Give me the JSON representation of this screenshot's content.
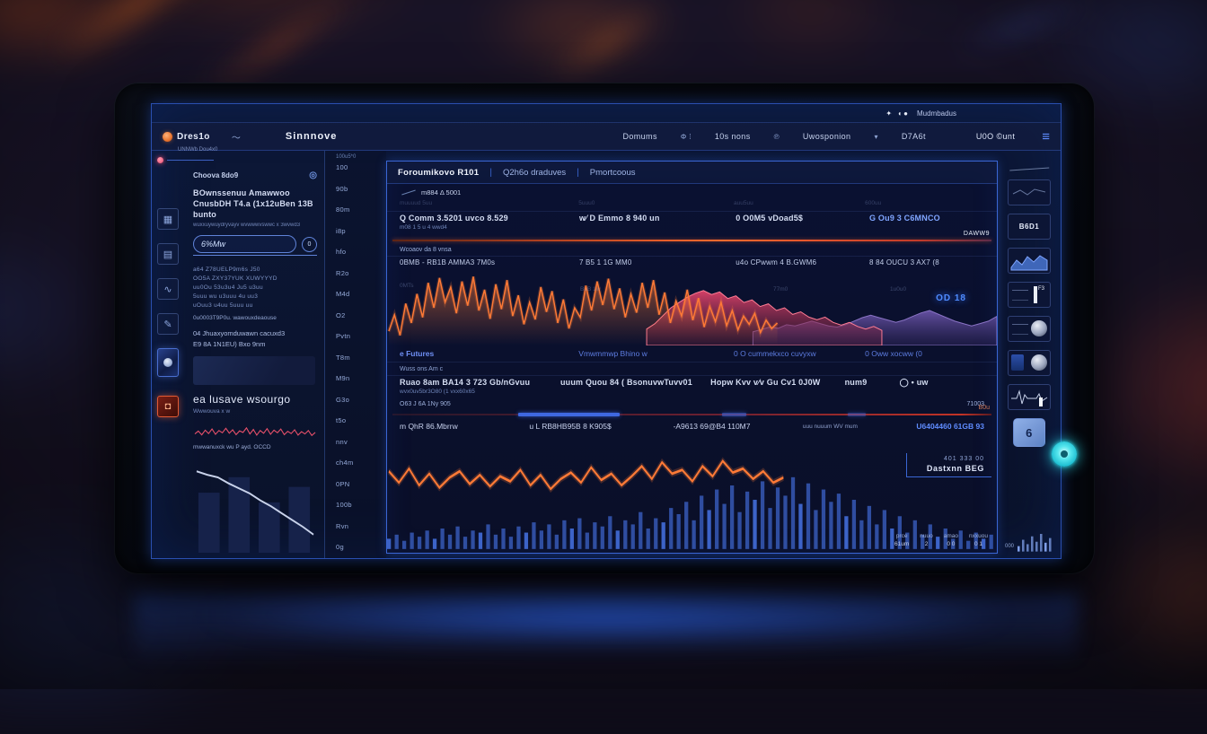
{
  "colors": {
    "accent_blue": "#3f6de0",
    "accent_orange": "#ff7a36",
    "pink": "#d84a72",
    "purple": "#64509c",
    "cyan": "#2bd9e6",
    "link_blue": "#5f8cff",
    "alert_red": "#e8506a"
  },
  "status_bar": {
    "marks": "✦ ◖●",
    "label": "Mudmbadus"
  },
  "nav": {
    "logo_text": "Dres1o",
    "logo_sub": "UNNWb Dou4x0",
    "wifi_glyph": "〜",
    "app_title": "Sinnnove",
    "items": [
      "Domums",
      "Φ ⁞",
      "10s nons",
      "℗",
      "Uwosponion",
      "▾",
      "D7A6t",
      "U0O ©unt"
    ],
    "menu_glyph": "≡"
  },
  "left_rail": {
    "icons": [
      {
        "name": "grid-icon",
        "glyph": "▦",
        "kind": "plain"
      },
      {
        "name": "document-icon",
        "glyph": "▤",
        "kind": "plain"
      },
      {
        "name": "waveform-icon",
        "glyph": "∿",
        "kind": "plain"
      },
      {
        "name": "pen-icon",
        "glyph": "✎",
        "kind": "plain"
      },
      {
        "name": "image-thumb-icon",
        "glyph": "",
        "kind": "thumb"
      },
      {
        "name": "alert-icon",
        "glyph": "◘",
        "kind": "alert"
      }
    ]
  },
  "left_panel": {
    "header": "Choova 8do9",
    "header_icon": "◎",
    "title_line1": "BOwnssenuu Amawwoo",
    "title_line2": "CnusbDH T4.a (1x12uBen 13B bunto",
    "subtitle": "wuxxuywuydryvayv wvwwwvswwc x 3wvwd3",
    "search_value": "6%Mw",
    "search_badge": "0",
    "body_lines": [
      "a64 Z78UELP9m6s J50",
      "OO5A ZXY37YUK XUWYYYD",
      "uu0Ou 53u3u4 Ju5 u3uu",
      "5uuu wu u3uuu 4u uu3",
      "uOuu3 u4uu 5uuu uu"
    ],
    "note_line": "0u0003T9P0u. wawouxdeaouse",
    "meta_line1": "04 Jhuaxyomduwawn cacuxd3",
    "meta_line2": "E9 8A 1N1EU) Bxo 9nm",
    "section_heading": "ea lusave wsourgo",
    "section_caption": "Wwwouva x w",
    "spark_caption": "mwwanuxck wu P ayd. OCCD"
  },
  "scale_top": "100u5*0",
  "scale_labels": [
    "100",
    "90b",
    "80m",
    "i8p",
    "hfo",
    "R2o",
    "M4d",
    "O2",
    "Pvtn",
    "T8m",
    "M9n",
    "G3o",
    "t5o",
    "nnv",
    "ch4m",
    "0PN",
    "100b",
    "Rvn",
    "0g"
  ],
  "main_panel": {
    "tabs": [
      "Foroumikovo R101",
      "Q2h6o draduves",
      "Pmortcoous"
    ],
    "tag": "m884 Δ 5001",
    "faint_labels": [
      "muuuud 5uu",
      "5uuu0",
      "auu5uu",
      "600uu"
    ],
    "stats_row1": [
      {
        "label": "Q Comm 3.5201 uvco 8.529",
        "sub": "m08 1 5 u 4 wwd4"
      },
      {
        "label": "w⁄ D Emmo 8 940 un",
        "sub": ""
      },
      {
        "label": "0 O0M5 vDoad5$",
        "sub": ""
      },
      {
        "label": "G Ou9 3 C6MNCO",
        "sub": ""
      }
    ],
    "divider1_label_left": "Wcoaov da 8 vnsa",
    "divider1_label_right": "DAWW9",
    "stats_row2": [
      "0BMB - RB1B AMMA3 7M0s",
      "7 B5 1 1G MM0",
      "u4o CPwwm 4 B.GWM6",
      "8 84 OUCU 3 AX7 (8"
    ],
    "chart_badge": "OD 18",
    "chart_faint_labels": [
      "0MTs",
      "BuB 1w",
      "77m0",
      "1u0u0"
    ],
    "legend": [
      "e Futures",
      "Vmwmmwp Bhino w",
      "0 O cummekxco cuvyxw",
      "0 Oww xocww (0"
    ],
    "table_header": "Wuss ons Am c",
    "stats_row3": [
      {
        "label": "Ruao 8am BA14 3 723 Gb/nGvuu",
        "sub": "wvx0uv5br3O80 (1 vxx60x65"
      },
      {
        "label": "uuum Quou 84 ( BsonuvwTuvv01",
        "sub": ""
      },
      {
        "label": "Hopw Kvv v⁄v Gu Cv1 0J0W",
        "sub": ""
      },
      {
        "label": "num9",
        "sub": ""
      },
      {
        "label": "◯ • uw",
        "sub": ""
      }
    ],
    "row4_left": "O63 J 6A 1Ny 905",
    "row4_right": "71003",
    "progress_label": "B0u",
    "stats_row5": [
      "m QhR 86.Mbrrw",
      "u L RB8HB95B 8 K905$",
      "-A9613 69@B4 110M7",
      "uuu nuuum WV mum"
    ],
    "stats_row5_link": "U6404460 61GB 93",
    "footer_num": "401 333 00",
    "footer_label": "Dastxnn BEG",
    "mini_stats": [
      {
        "k": "prce",
        "v": "61um"
      },
      {
        "k": "nuuo",
        "v": "2"
      },
      {
        "k": "amao",
        "v": "0 0"
      },
      {
        "k": "nxxuou",
        "v": "0 1"
      }
    ]
  },
  "right_sidebar": {
    "cards": [
      {
        "name": "scribble-card",
        "kind": "line",
        "text": ""
      },
      {
        "name": "ticker-card",
        "kind": "text",
        "text": "B6D1"
      },
      {
        "name": "wave-card",
        "kind": "wave",
        "text": ""
      },
      {
        "name": "flag-card",
        "kind": "bar",
        "text": "F3"
      },
      {
        "name": "sphere-card",
        "kind": "sphere",
        "text": ""
      },
      {
        "name": "sphere-card-2",
        "kind": "sphere2",
        "text": ""
      },
      {
        "name": "pulse-card",
        "kind": "pulse",
        "text": "1"
      },
      {
        "name": "badge-card",
        "kind": "digit",
        "text": "6"
      }
    ],
    "bars_label": "000"
  },
  "chart_data": [
    {
      "id": "main-waveform",
      "type": "area",
      "title": "",
      "xlabel": "",
      "ylabel": "",
      "ylim": [
        0,
        100
      ],
      "series": [
        {
          "name": "signal-orange",
          "color": "#ff7a36",
          "values": [
            18,
            42,
            12,
            58,
            30,
            72,
            38,
            88,
            52,
            95,
            60,
            82,
            44,
            90,
            55,
            97,
            48,
            78,
            36,
            86,
            50,
            92,
            40,
            70,
            28,
            60,
            35,
            82,
            46,
            76,
            30,
            64,
            22,
            52,
            38,
            84,
            48,
            90,
            56,
            94,
            50,
            80,
            38,
            72,
            45,
            88,
            52,
            92,
            42,
            74,
            30,
            62,
            40,
            78,
            34,
            66,
            24,
            54,
            32,
            60,
            26,
            48,
            20,
            40,
            28,
            44,
            16,
            34,
            22,
            30
          ]
        },
        {
          "name": "band-pink",
          "color": "#d84a72",
          "values": [
            22,
            30,
            42,
            54,
            62,
            70,
            76,
            80,
            74,
            78,
            68,
            72,
            62,
            66,
            56,
            60,
            50,
            54,
            44,
            48,
            40,
            36,
            40,
            32,
            28,
            32,
            26,
            22,
            26,
            20
          ]
        },
        {
          "name": "band-purple",
          "color": "#64509c",
          "values": [
            20,
            24,
            28,
            26,
            32,
            30,
            34,
            38,
            34,
            30,
            28,
            32,
            38,
            44,
            48,
            44,
            40,
            36,
            40,
            46,
            52,
            56,
            50,
            44,
            38,
            34,
            30,
            34,
            38,
            46
          ]
        }
      ]
    },
    {
      "id": "secondary-price-volume",
      "type": "bar+line",
      "ylim": [
        0,
        100
      ],
      "series": [
        {
          "name": "price",
          "color": "#ff7a36",
          "values": [
            58,
            40,
            62,
            36,
            54,
            32,
            48,
            58,
            38,
            52,
            34,
            50,
            42,
            60,
            36,
            52,
            30,
            46,
            56,
            40,
            64,
            44,
            54,
            36,
            50,
            66,
            46,
            72,
            54,
            60,
            42,
            66,
            50,
            74,
            56,
            62,
            46,
            58,
            40,
            48
          ]
        },
        {
          "name": "volume",
          "color": "#3c63c8",
          "values": [
            10,
            14,
            8,
            16,
            12,
            18,
            10,
            20,
            14,
            22,
            12,
            18,
            16,
            24,
            14,
            20,
            12,
            22,
            16,
            26,
            18,
            24,
            14,
            28,
            20,
            30,
            16,
            26,
            22,
            32,
            18,
            28,
            24,
            36,
            20,
            30,
            26,
            40,
            34,
            46,
            28,
            52,
            38,
            58,
            44,
            62,
            36,
            56,
            48,
            66,
            40,
            60,
            52,
            70,
            44,
            64,
            38,
            58,
            46,
            54,
            32,
            48,
            28,
            42,
            24,
            38,
            20,
            32,
            16,
            28,
            14,
            24,
            12,
            20,
            10,
            18,
            8,
            16,
            10,
            14
          ]
        }
      ]
    },
    {
      "id": "left-sparkline",
      "type": "line",
      "ylim": [
        0,
        100
      ],
      "series": [
        {
          "name": "alert-signal",
          "color": "#e8506a",
          "values": [
            40,
            55,
            35,
            60,
            42,
            66,
            38,
            58,
            46,
            70,
            44,
            62,
            36,
            56,
            48,
            72,
            40,
            64,
            34,
            58,
            44,
            68,
            38,
            60,
            46,
            66,
            36,
            54,
            42,
            62,
            34,
            52,
            40,
            58,
            32,
            48
          ]
        }
      ]
    },
    {
      "id": "left-trend",
      "type": "line",
      "ylim": [
        0,
        100
      ],
      "series": [
        {
          "name": "decline",
          "color": "#c8d2ea",
          "values": [
            90,
            86,
            83,
            76,
            70,
            64,
            56,
            49,
            41,
            33,
            25,
            16
          ]
        },
        {
          "name": "silhouette-bars",
          "color": "#16224a",
          "values": [
            62,
            78,
            52,
            68
          ]
        }
      ]
    },
    {
      "id": "right-mini-bars",
      "type": "bar",
      "ylim": [
        0,
        100
      ],
      "series": [
        {
          "name": "levels",
          "color": "#7f9fe8",
          "values": [
            22,
            48,
            30,
            62,
            40,
            72,
            36,
            55
          ]
        }
      ]
    },
    {
      "id": "footer-mini-bars",
      "type": "bar",
      "ylim": [
        0,
        100
      ],
      "series": [
        {
          "name": "levels",
          "color": "#6f8fd8",
          "values": [
            18,
            42,
            26,
            58,
            36,
            66,
            46,
            30,
            62,
            50
          ]
        }
      ]
    }
  ]
}
